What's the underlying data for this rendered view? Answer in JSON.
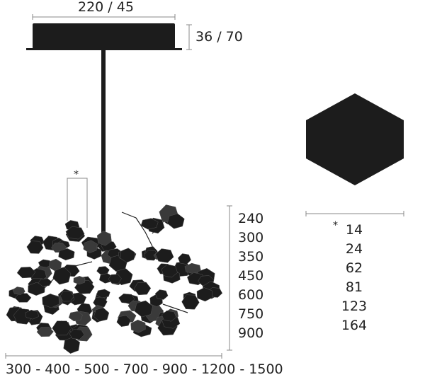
{
  "canopy": {
    "dimension_width": "220 / 45",
    "dimension_height": "36 / 70"
  },
  "cluster": {
    "leaf_marker": "*",
    "heights": [
      "240",
      "300",
      "350",
      "450",
      "600",
      "750",
      "900"
    ],
    "widths": "300 - 400 - 500 - 700 - 900 - 1200 - 1500"
  },
  "leaf": {
    "marker": "*",
    "sizes": [
      "14",
      "24",
      "62",
      "81",
      "123",
      "164"
    ]
  },
  "colors": {
    "body": "#1c1c1c",
    "leaf_light": "#3a3a3a",
    "dimension_line": "#888888"
  }
}
